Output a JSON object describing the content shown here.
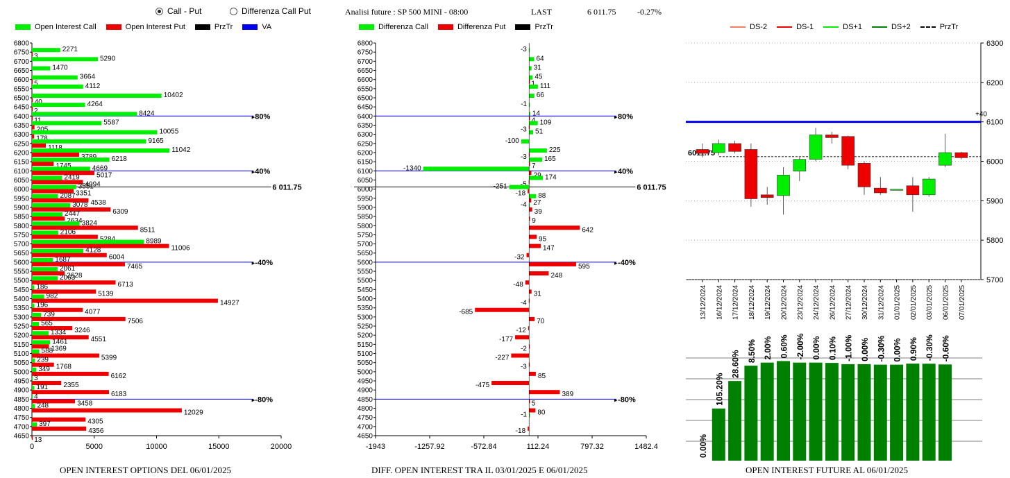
{
  "header": {
    "radio_call_put": "Call - Put",
    "radio_diff": "Differenza Call Put",
    "title": "Analisi future : SP 500 MINI - 08:00",
    "last_label": "LAST",
    "last_value": "6 011.75",
    "change": "-0.27%"
  },
  "legends": {
    "left": [
      "Open Interest Call",
      "Open Interest Put",
      "PrzTr",
      "VA"
    ],
    "middle": [
      "Differenza Call",
      "Differenza Put",
      "PrzTr"
    ],
    "right": [
      "DS-2",
      "DS-1",
      "DS+1",
      "DS+2",
      "PrzTr"
    ]
  },
  "captions": {
    "left": "OPEN INTEREST OPTIONS DEL 06/01/2025",
    "middle": "DIFF. OPEN INTEREST TRA IL 03/01/2025 E 06/01/2025",
    "right": "OPEN INTEREST FUTURE AL 06/01/2025"
  },
  "colors": {
    "call": "#00ee00",
    "put": "#ee0000",
    "przTr": "#000000",
    "va": "#0000ee",
    "dark_green": "#008000",
    "ds_minus2": "#f08060"
  },
  "chart_data": [
    {
      "type": "bar",
      "orientation": "horizontal",
      "strikes": [
        6800,
        6750,
        6700,
        6650,
        6600,
        6550,
        6500,
        6450,
        6400,
        6350,
        6300,
        6250,
        6200,
        6150,
        6100,
        6050,
        6000,
        5950,
        5900,
        5850,
        5800,
        5750,
        5700,
        5650,
        5600,
        5550,
        5500,
        5450,
        5400,
        5350,
        5300,
        5250,
        5200,
        5150,
        5100,
        5050,
        5000,
        4950,
        4900,
        4850,
        4800,
        4750,
        4700,
        4650
      ],
      "series": [
        {
          "name": "Open Interest Call",
          "values": [
            null,
            2271,
            5290,
            1470,
            3664,
            4112,
            10402,
            4264,
            8424,
            5587,
            10055,
            9165,
            11042,
            6218,
            4669,
            2419,
            3551,
            2087,
            3078,
            2447,
            3824,
            2106,
            8989,
            4128,
            1687,
            2061,
            2063,
            186,
            982,
            196,
            739,
            565,
            1334,
            1461,
            588,
            239,
            349,
            3,
            191,
            4,
            248,
            null,
            397,
            null
          ]
        },
        {
          "name": "Open Interest Put",
          "values": [
            null,
            3,
            null,
            null,
            5,
            null,
            40,
            2,
            11,
            205,
            178,
            1118,
            3789,
            1745,
            5017,
            4094,
            3351,
            4538,
            6309,
            2634,
            8511,
            5284,
            11006,
            6004,
            7465,
            2628,
            6713,
            5139,
            14927,
            4077,
            7506,
            3246,
            4551,
            1369,
            5399,
            1768,
            6162,
            2355,
            6183,
            3458,
            12029,
            4305,
            4356,
            13
          ]
        }
      ],
      "lines": [
        {
          "label": "80%",
          "strike": 6400
        },
        {
          "label": "40%",
          "strike": 6100
        },
        {
          "label": "6 011.75",
          "strike": 6011.75
        },
        {
          "label": "-40%",
          "strike": 5600
        },
        {
          "label": "-80%",
          "strike": 4850
        }
      ],
      "xlim": [
        0,
        20000
      ],
      "xticks": [
        "0",
        "5000",
        "10000",
        "15000",
        "20000"
      ]
    },
    {
      "type": "bar",
      "orientation": "horizontal",
      "strikes": [
        6800,
        6750,
        6700,
        6650,
        6600,
        6550,
        6500,
        6450,
        6400,
        6350,
        6300,
        6250,
        6200,
        6150,
        6100,
        6050,
        6000,
        5950,
        5900,
        5850,
        5800,
        5750,
        5700,
        5650,
        5600,
        5550,
        5500,
        5450,
        5400,
        5350,
        5300,
        5250,
        5200,
        5150,
        5100,
        5050,
        5000,
        4950,
        4900,
        4850,
        4800,
        4750,
        4700,
        4650
      ],
      "series": [
        {
          "name": "Differenza Call",
          "values": [
            null,
            -3,
            64,
            31,
            45,
            111,
            66,
            -1,
            14,
            109,
            51,
            -100,
            225,
            165,
            -1340,
            174,
            -251,
            88,
            -4,
            null,
            null,
            null,
            null,
            null,
            null,
            null,
            null,
            null,
            null,
            null,
            null,
            null,
            null,
            null,
            null,
            null,
            null,
            null,
            null,
            null,
            null,
            -1,
            null,
            null
          ]
        },
        {
          "name": "Differenza Put",
          "values": [
            null,
            null,
            null,
            null,
            1,
            null,
            null,
            null,
            4,
            -3,
            null,
            null,
            -3,
            7,
            29,
            -5,
            -18,
            27,
            39,
            9,
            642,
            95,
            147,
            -32,
            595,
            248,
            -48,
            31,
            -4,
            -685,
            70,
            -12,
            -177,
            -2,
            -227,
            -3,
            85,
            -475,
            389,
            5,
            80,
            null,
            -18,
            null
          ]
        }
      ],
      "lines": [
        {
          "label": "80%",
          "strike": 6400
        },
        {
          "label": "40%",
          "strike": 6100
        },
        {
          "label": "6 011.75",
          "strike": 6011.75
        },
        {
          "label": "-40%",
          "strike": 5600
        },
        {
          "label": "-80%",
          "strike": 4850
        }
      ],
      "xlim": [
        -1943,
        1482.4
      ],
      "xticks": [
        "-1943",
        "-1257.92",
        "-572.84",
        "112.24",
        "797.32",
        "1482.4"
      ]
    },
    {
      "type": "candlestick",
      "dates": [
        "13/12/2024",
        "16/12/2024",
        "17/12/2024",
        "18/12/2024",
        "19/12/2024",
        "20/12/2024",
        "23/12/2024",
        "24/12/2024",
        "26/12/2024",
        "27/12/2024",
        "30/12/2024",
        "31/12/2024",
        "01/01/2025",
        "02/01/2025",
        "03/01/2025",
        "06/01/2025",
        "07/01/2025"
      ],
      "candles": [
        {
          "o": 6030,
          "h": 6045,
          "l": 6010,
          "c": 6020
        },
        {
          "o": 6022,
          "h": 6055,
          "l": 6015,
          "c": 6045
        },
        {
          "o": 6045,
          "h": 6052,
          "l": 6020,
          "c": 6025
        },
        {
          "o": 6030,
          "h": 6045,
          "l": 5885,
          "c": 5905
        },
        {
          "o": 5915,
          "h": 5935,
          "l": 5890,
          "c": 5908
        },
        {
          "o": 5913,
          "h": 5985,
          "l": 5865,
          "c": 5965
        },
        {
          "o": 5975,
          "h": 6010,
          "l": 5950,
          "c": 6005
        },
        {
          "o": 6005,
          "h": 6085,
          "l": 6000,
          "c": 6067
        },
        {
          "o": 6067,
          "h": 6075,
          "l": 6045,
          "c": 6060
        },
        {
          "o": 6063,
          "h": 6065,
          "l": 5980,
          "c": 5990
        },
        {
          "o": 5995,
          "h": 6000,
          "l": 5915,
          "c": 5935
        },
        {
          "o": 5932,
          "h": 5960,
          "l": 5915,
          "c": 5920
        },
        {
          "o": 5929,
          "h": 5929,
          "l": 5929,
          "c": 5929
        },
        {
          "o": 5938,
          "h": 5960,
          "l": 5872,
          "c": 5915
        },
        {
          "o": 5915,
          "h": 5960,
          "l": 5910,
          "c": 5955
        },
        {
          "o": 5990,
          "h": 6070,
          "l": 5985,
          "c": 6022
        },
        {
          "o": 6022,
          "h": 6024,
          "l": 6005,
          "c": 6009
        }
      ],
      "przTr": 6011.75,
      "przTr_label": "6011.75",
      "level_line": 6100,
      "level_label": "+40",
      "ylim": [
        5700,
        6300
      ],
      "yticks": [
        "5700",
        "5800",
        "5900",
        "6000",
        "6100",
        "6200",
        "6300"
      ]
    },
    {
      "type": "bar",
      "categories": [
        "13/12/2024",
        "16/12/2024",
        "17/12/2024",
        "18/12/2024",
        "19/12/2024",
        "20/12/2024",
        "23/12/2024",
        "24/12/2024",
        "26/12/2024",
        "27/12/2024",
        "30/12/2024",
        "31/12/2024",
        "01/01/2025",
        "02/01/2025",
        "03/01/2025",
        "06/01/2025",
        "07/01/2025"
      ],
      "values": [
        0,
        50.8,
        77.6,
        92.5,
        95.5,
        97,
        95.5,
        95.5,
        95.2,
        94,
        94,
        93.5,
        93.5,
        94.5,
        94.4,
        93.7,
        null
      ],
      "labels": [
        "0.00%",
        "105.20%",
        "28.60%",
        "8.50%",
        "2.00%",
        "0.60%",
        "-2.00%",
        "0.00%",
        "0.10%",
        "-1.00%",
        "0.00%",
        "-0.30%",
        "0.00%",
        "0.90%",
        "-0.30%",
        "-0.60%",
        ""
      ]
    }
  ]
}
